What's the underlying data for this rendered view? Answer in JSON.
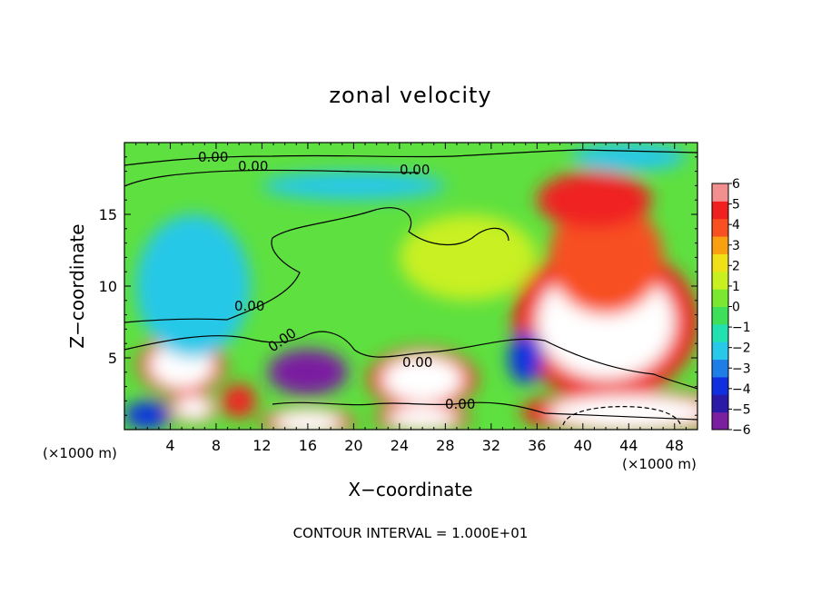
{
  "chart_data": {
    "type": "heatmap",
    "title": "zonal velocity",
    "xlabel": "X−coordinate",
    "ylabel": "Z−coordinate",
    "x_unit_note_left": "(×1000 m)",
    "x_unit_note_right": "(×1000 m)",
    "xlim": [
      0,
      50
    ],
    "ylim": [
      0,
      20
    ],
    "x_ticks": [
      4,
      8,
      12,
      16,
      20,
      24,
      28,
      32,
      36,
      40,
      44,
      48
    ],
    "y_ticks": [
      5,
      10,
      15
    ],
    "colorbar": {
      "range": [
        -6,
        6
      ],
      "ticks": [
        6,
        5,
        4,
        3,
        2,
        1,
        0,
        -1,
        -2,
        -3,
        -4,
        -5,
        -6
      ],
      "tick_labels": [
        "6",
        "5",
        "4",
        "3",
        "2",
        "1",
        "0",
        "−1",
        "−2",
        "−3",
        "−4",
        "−5",
        "−6"
      ],
      "colors": [
        "#7a1fa0",
        "#2b1aa8",
        "#1030e0",
        "#1f7de8",
        "#28c8e8",
        "#22e0b0",
        "#3ee05a",
        "#7ae830",
        "#c8f020",
        "#f0e018",
        "#f8a010",
        "#f85020",
        "#f02020",
        "#f29090"
      ]
    },
    "contour_labels": [
      "0.00",
      "0.00",
      "0.00",
      "0.00",
      "0.00",
      "0.00",
      "0.00"
    ],
    "contour_interval_text": "CONTOUR INTERVAL = 1.000E+01",
    "features": [
      {
        "x": 42,
        "z": 7.5,
        "value": 7,
        "rx": 6,
        "rz": 4
      },
      {
        "x": 42,
        "z": 12,
        "value": 4,
        "rx": 5,
        "rz": 4
      },
      {
        "x": 41,
        "z": 16,
        "value": 4.5,
        "rx": 5,
        "rz": 2
      },
      {
        "x": 5,
        "z": 4.5,
        "value": 7,
        "rx": 2.8,
        "rz": 1.6
      },
      {
        "x": 26,
        "z": 3.5,
        "value": 7,
        "rx": 3.5,
        "rz": 1.6
      },
      {
        "x": 44,
        "z": 1.2,
        "value": 7,
        "rx": 7,
        "rz": 1.2
      },
      {
        "x": 16,
        "z": 0.5,
        "value": 7,
        "rx": 3,
        "rz": 0.8
      },
      {
        "x": 26,
        "z": 0.8,
        "value": 7,
        "rx": 3,
        "rz": 0.8
      },
      {
        "x": 6,
        "z": 1.5,
        "value": 7,
        "rx": 1.6,
        "rz": 0.8
      },
      {
        "x": 16,
        "z": 4,
        "value": -5.5,
        "rx": 3.5,
        "rz": 1.6
      },
      {
        "x": 35,
        "z": 5,
        "value": -4,
        "rx": 1.5,
        "rz": 1.8
      },
      {
        "x": 6,
        "z": 10,
        "value": -2,
        "rx": 5,
        "rz": 5
      },
      {
        "x": 20,
        "z": 17,
        "value": -2.5,
        "rx": 8,
        "rz": 1
      },
      {
        "x": 44,
        "z": 19,
        "value": -2,
        "rx": 5,
        "rz": 1
      },
      {
        "x": 10,
        "z": 2,
        "value": 4.5,
        "rx": 1.5,
        "rz": 1.2
      },
      {
        "x": 2,
        "z": 1,
        "value": -4,
        "rx": 2,
        "rz": 1
      },
      {
        "x": 30,
        "z": 12,
        "value": 1.5,
        "rx": 6,
        "rz": 3
      }
    ]
  }
}
